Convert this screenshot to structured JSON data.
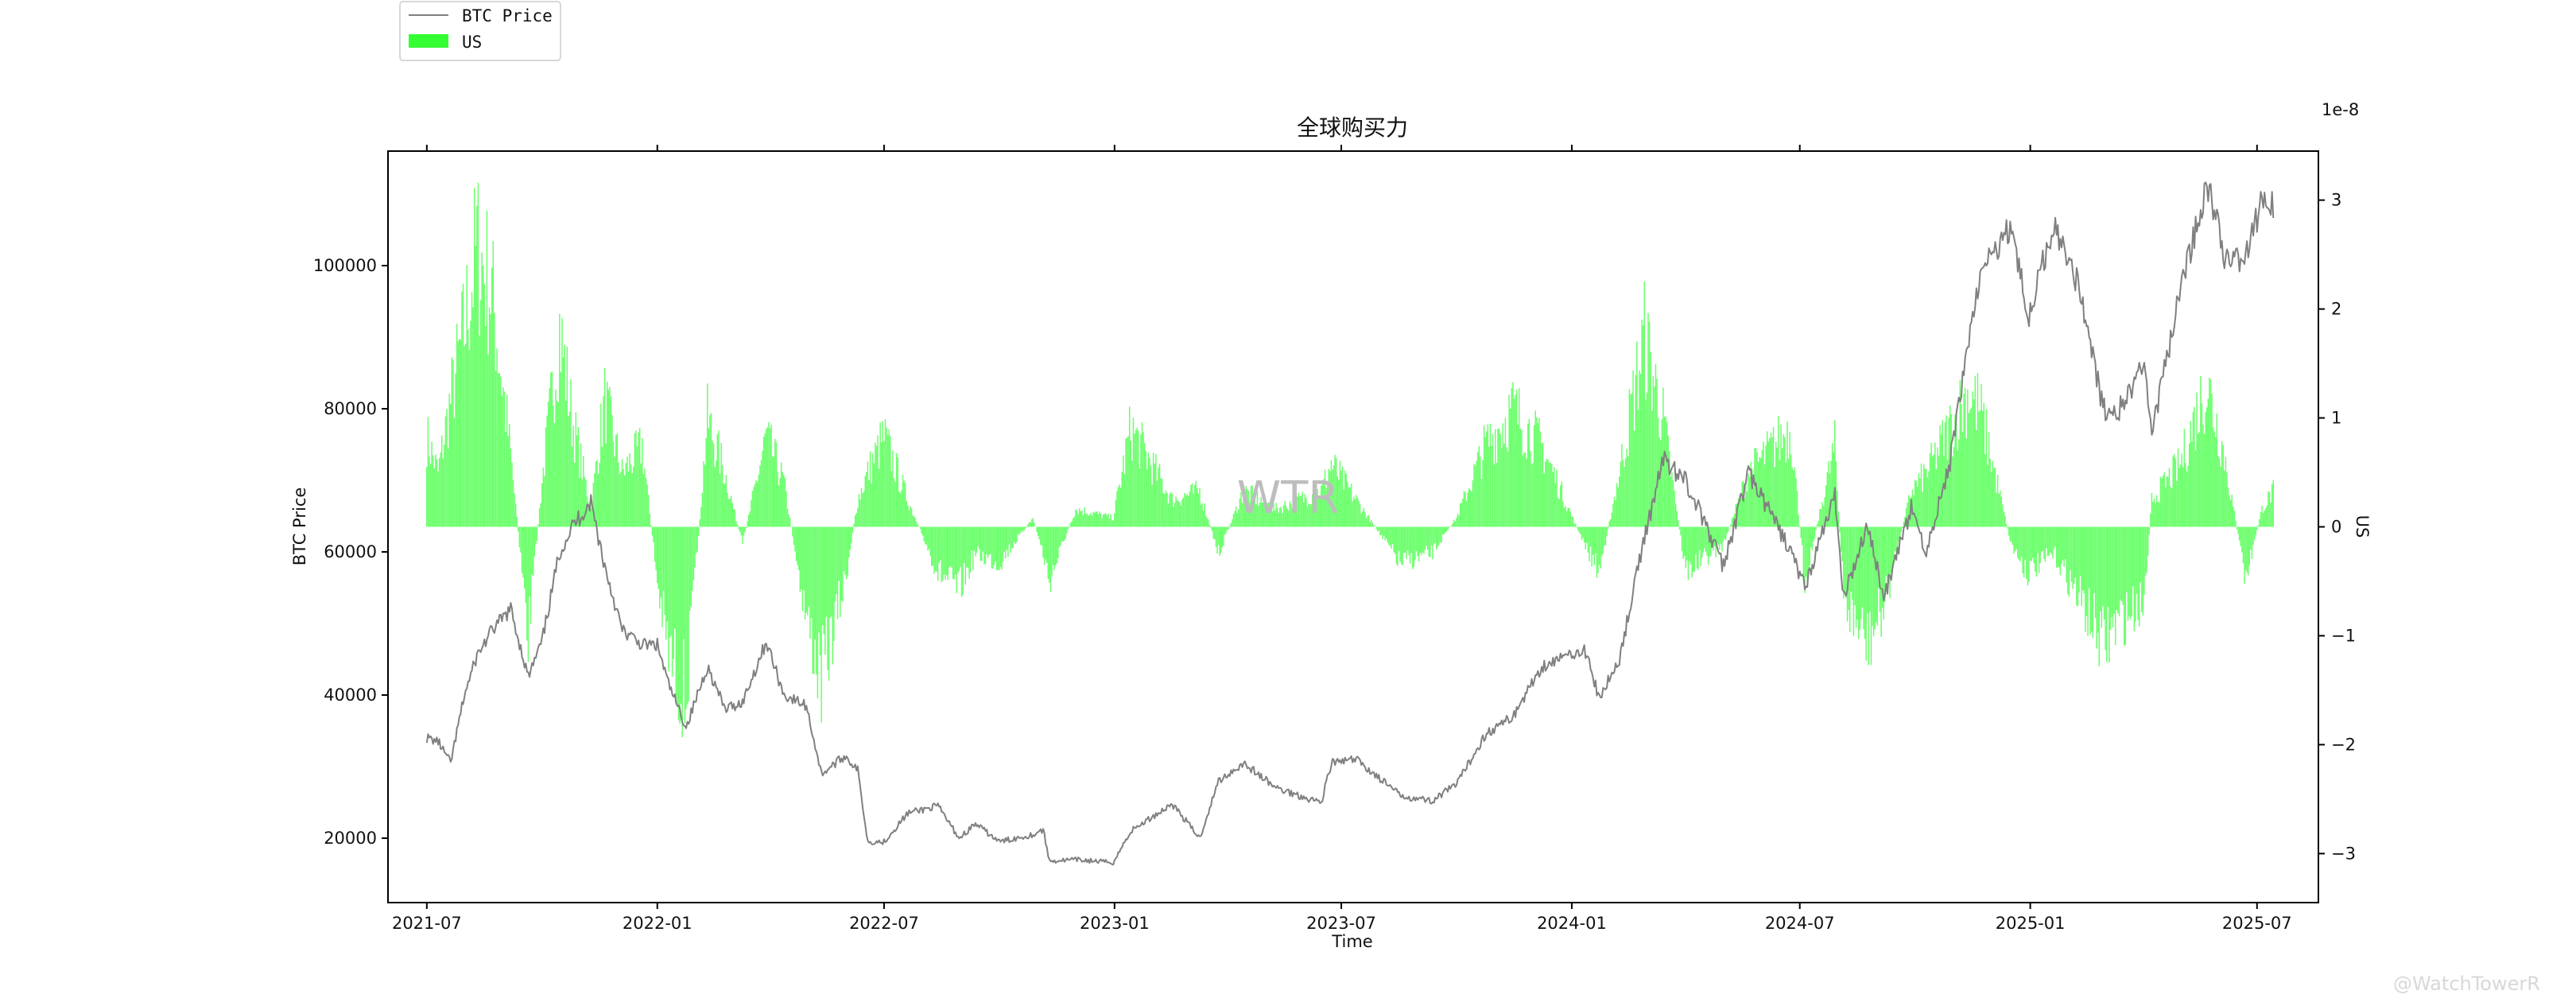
{
  "chart_data": {
    "type": "bar+line",
    "title": "全球购买力",
    "xlabel": "Time",
    "ylabel_left": "BTC Price",
    "ylabel_right": "US",
    "right_axis_multiplier": "1e-8",
    "ylim_left": [
      11000,
      116000
    ],
    "ylim_right": [
      -3.45,
      3.45
    ],
    "x_range": [
      "2021-05-31",
      "2025-08-19"
    ],
    "x_ticks": [
      "2021-07",
      "2022-01",
      "2022-07",
      "2023-01",
      "2023-07",
      "2024-01",
      "2024-07",
      "2025-01",
      "2025-07"
    ],
    "x_tick_dates": [
      "2021-07-01",
      "2022-01-01",
      "2022-07-01",
      "2023-01-01",
      "2023-07-01",
      "2024-01-01",
      "2024-07-01",
      "2025-01-01",
      "2025-07-01"
    ],
    "y_ticks_left": [
      "20000",
      "40000",
      "60000",
      "80000",
      "100000"
    ],
    "y_tick_values_left": [
      20000,
      40000,
      60000,
      80000,
      100000
    ],
    "y_ticks_right": [
      "−3",
      "−2",
      "−1",
      "0",
      "1",
      "2",
      "3"
    ],
    "y_tick_values_right": [
      -3,
      -2,
      -1,
      0,
      1,
      2,
      3
    ],
    "legend": {
      "placement": "top-left, above plot",
      "entries": [
        {
          "label": "BTC Price",
          "kind": "line",
          "color": "#808080"
        },
        {
          "label": "US",
          "kind": "bar",
          "color": "#33ff33"
        }
      ]
    },
    "series": [
      {
        "name": "BTC Price",
        "type": "line",
        "axis": "left",
        "color": "#808080",
        "points": [
          [
            "2021-07-01",
            34000
          ],
          [
            "2021-07-10",
            33500
          ],
          [
            "2021-07-20",
            30500
          ],
          [
            "2021-07-31",
            40000
          ],
          [
            "2021-08-10",
            45500
          ],
          [
            "2021-08-22",
            49000
          ],
          [
            "2021-09-06",
            52000
          ],
          [
            "2021-09-20",
            42500
          ],
          [
            "2021-10-01",
            47500
          ],
          [
            "2021-10-15",
            60000
          ],
          [
            "2021-10-25",
            63500
          ],
          [
            "2021-11-09",
            67000
          ],
          [
            "2021-11-20",
            58000
          ],
          [
            "2021-12-04",
            49000
          ],
          [
            "2021-12-20",
            47000
          ],
          [
            "2022-01-01",
            47000
          ],
          [
            "2022-01-10",
            41500
          ],
          [
            "2022-01-24",
            35500
          ],
          [
            "2022-02-10",
            44000
          ],
          [
            "2022-02-24",
            38000
          ],
          [
            "2022-03-10",
            39000
          ],
          [
            "2022-03-29",
            47500
          ],
          [
            "2022-04-12",
            40000
          ],
          [
            "2022-04-30",
            38500
          ],
          [
            "2022-05-12",
            29000
          ],
          [
            "2022-05-31",
            31500
          ],
          [
            "2022-06-10",
            29500
          ],
          [
            "2022-06-18",
            19500
          ],
          [
            "2022-07-01",
            19500
          ],
          [
            "2022-07-20",
            23500
          ],
          [
            "2022-08-13",
            24500
          ],
          [
            "2022-08-30",
            20000
          ],
          [
            "2022-09-12",
            22000
          ],
          [
            "2022-10-01",
            19500
          ],
          [
            "2022-10-28",
            20500
          ],
          [
            "2022-11-05",
            21200
          ],
          [
            "2022-11-10",
            16800
          ],
          [
            "2022-12-01",
            17000
          ],
          [
            "2022-12-31",
            16600
          ],
          [
            "2023-01-14",
            21000
          ],
          [
            "2023-02-16",
            24800
          ],
          [
            "2023-03-10",
            20000
          ],
          [
            "2023-03-25",
            28000
          ],
          [
            "2023-04-14",
            30500
          ],
          [
            "2023-05-10",
            27000
          ],
          [
            "2023-06-15",
            25000
          ],
          [
            "2023-06-23",
            30500
          ],
          [
            "2023-07-13",
            31000
          ],
          [
            "2023-08-17",
            26000
          ],
          [
            "2023-09-11",
            25200
          ],
          [
            "2023-10-01",
            27500
          ],
          [
            "2023-10-24",
            34500
          ],
          [
            "2023-11-15",
            37000
          ],
          [
            "2023-12-08",
            44000
          ],
          [
            "2024-01-11",
            46500
          ],
          [
            "2024-01-23",
            39500
          ],
          [
            "2024-02-08",
            45000
          ],
          [
            "2024-02-28",
            62000
          ],
          [
            "2024-03-14",
            73000
          ],
          [
            "2024-04-01",
            70000
          ],
          [
            "2024-05-01",
            58000
          ],
          [
            "2024-05-21",
            71000
          ],
          [
            "2024-06-24",
            60000
          ],
          [
            "2024-07-05",
            55000
          ],
          [
            "2024-07-29",
            68000
          ],
          [
            "2024-08-05",
            53500
          ],
          [
            "2024-08-24",
            64000
          ],
          [
            "2024-09-06",
            53500
          ],
          [
            "2024-09-28",
            66000
          ],
          [
            "2024-10-10",
            60000
          ],
          [
            "2024-10-29",
            72500
          ],
          [
            "2024-11-13",
            90000
          ],
          [
            "2024-11-22",
            98500
          ],
          [
            "2024-12-17",
            106000
          ],
          [
            "2024-12-30",
            92500
          ],
          [
            "2025-01-20",
            106000
          ],
          [
            "2025-02-10",
            96500
          ],
          [
            "2025-02-28",
            80000
          ],
          [
            "2025-03-10",
            79000
          ],
          [
            "2025-04-02",
            86000
          ],
          [
            "2025-04-08",
            76500
          ],
          [
            "2025-05-01",
            96500
          ],
          [
            "2025-05-22",
            111500
          ],
          [
            "2025-06-05",
            101500
          ],
          [
            "2025-06-22",
            101000
          ],
          [
            "2025-07-05",
            109000
          ],
          [
            "2025-07-14",
            108500
          ]
        ]
      },
      {
        "name": "US",
        "type": "bar",
        "axis": "right",
        "color": "#33ff33",
        "points": [
          [
            "2021-07-01",
            1.0
          ],
          [
            "2021-07-10",
            0.6
          ],
          [
            "2021-07-20",
            1.4
          ],
          [
            "2021-07-31",
            2.2
          ],
          [
            "2021-08-10",
            3.1
          ],
          [
            "2021-08-22",
            2.6
          ],
          [
            "2021-09-06",
            0.8
          ],
          [
            "2021-09-20",
            -1.2
          ],
          [
            "2021-10-01",
            0.5
          ],
          [
            "2021-10-15",
            2.2
          ],
          [
            "2021-10-25",
            1.2
          ],
          [
            "2021-11-09",
            0.2
          ],
          [
            "2021-11-20",
            1.4
          ],
          [
            "2021-12-04",
            0.6
          ],
          [
            "2021-12-20",
            0.9
          ],
          [
            "2022-01-01",
            -0.6
          ],
          [
            "2022-01-10",
            -1.4
          ],
          [
            "2022-01-24",
            -1.9
          ],
          [
            "2022-02-10",
            1.2
          ],
          [
            "2022-02-24",
            0.6
          ],
          [
            "2022-03-10",
            -0.2
          ],
          [
            "2022-03-29",
            1.0
          ],
          [
            "2022-04-12",
            0.5
          ],
          [
            "2022-04-30",
            -1.0
          ],
          [
            "2022-05-12",
            -1.7
          ],
          [
            "2022-05-31",
            -0.6
          ],
          [
            "2022-06-10",
            0.3
          ],
          [
            "2022-06-18",
            0.6
          ],
          [
            "2022-07-01",
            1.0
          ],
          [
            "2022-07-20",
            0.3
          ],
          [
            "2022-08-13",
            -0.5
          ],
          [
            "2022-08-30",
            -0.7
          ],
          [
            "2022-09-12",
            -0.3
          ],
          [
            "2022-10-01",
            -0.4
          ],
          [
            "2022-10-28",
            0.1
          ],
          [
            "2022-11-05",
            -0.3
          ],
          [
            "2022-11-10",
            -0.6
          ],
          [
            "2022-12-01",
            0.2
          ],
          [
            "2022-12-31",
            0.1
          ],
          [
            "2023-01-14",
            1.1
          ],
          [
            "2023-02-16",
            0.3
          ],
          [
            "2023-03-10",
            0.4
          ],
          [
            "2023-03-25",
            -0.3
          ],
          [
            "2023-04-14",
            0.4
          ],
          [
            "2023-05-10",
            0.2
          ],
          [
            "2023-06-15",
            0.4
          ],
          [
            "2023-06-23",
            0.7
          ],
          [
            "2023-07-13",
            0.3
          ],
          [
            "2023-08-17",
            -0.4
          ],
          [
            "2023-09-11",
            -0.3
          ],
          [
            "2023-10-01",
            0.1
          ],
          [
            "2023-10-24",
            0.9
          ],
          [
            "2023-11-15",
            1.3
          ],
          [
            "2023-12-08",
            0.9
          ],
          [
            "2024-01-11",
            -0.2
          ],
          [
            "2024-01-23",
            -0.5
          ],
          [
            "2024-02-08",
            0.6
          ],
          [
            "2024-02-28",
            2.1
          ],
          [
            "2024-03-14",
            1.2
          ],
          [
            "2024-04-01",
            -0.5
          ],
          [
            "2024-05-01",
            -0.2
          ],
          [
            "2024-05-21",
            0.6
          ],
          [
            "2024-06-24",
            1.1
          ],
          [
            "2024-07-05",
            -0.6
          ],
          [
            "2024-07-29",
            0.9
          ],
          [
            "2024-08-05",
            -0.8
          ],
          [
            "2024-08-24",
            -1.3
          ],
          [
            "2024-09-06",
            -0.9
          ],
          [
            "2024-09-28",
            0.4
          ],
          [
            "2024-10-10",
            0.6
          ],
          [
            "2024-10-29",
            1.1
          ],
          [
            "2024-11-13",
            1.5
          ],
          [
            "2024-11-22",
            1.3
          ],
          [
            "2024-12-17",
            -0.2
          ],
          [
            "2024-12-30",
            -0.5
          ],
          [
            "2025-01-20",
            -0.3
          ],
          [
            "2025-02-10",
            -0.8
          ],
          [
            "2025-02-28",
            -1.3
          ],
          [
            "2025-03-10",
            -1.1
          ],
          [
            "2025-04-02",
            -0.8
          ],
          [
            "2025-04-08",
            0.3
          ],
          [
            "2025-05-01",
            0.7
          ],
          [
            "2025-05-22",
            1.6
          ],
          [
            "2025-06-05",
            0.8
          ],
          [
            "2025-06-22",
            -0.6
          ],
          [
            "2025-07-05",
            0.2
          ],
          [
            "2025-07-14",
            0.4
          ]
        ]
      }
    ]
  },
  "watermark_center": "WTR",
  "watermark_corner": "@WatchTowerR"
}
